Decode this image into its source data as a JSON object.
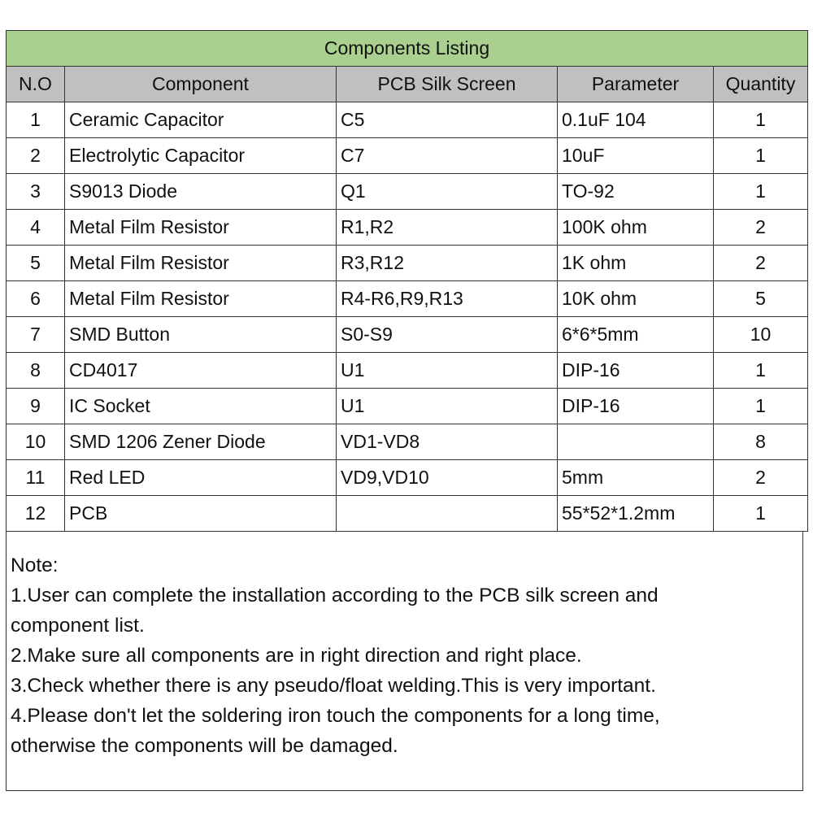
{
  "title": "Components Listing",
  "headers": [
    "N.O",
    "Component",
    "PCB Silk Screen",
    "Parameter",
    "Quantity"
  ],
  "rows": [
    [
      "1",
      "Ceramic Capacitor",
      "C5",
      "0.1uF 104",
      "1"
    ],
    [
      "2",
      "Electrolytic Capacitor",
      "C7",
      "10uF",
      "1"
    ],
    [
      "3",
      "S9013 Diode",
      "Q1",
      "TO-92",
      "1"
    ],
    [
      "4",
      "Metal Film Resistor",
      "R1,R2",
      "100K ohm",
      "2"
    ],
    [
      "5",
      "Metal Film Resistor",
      "R3,R12",
      "1K ohm",
      "2"
    ],
    [
      "6",
      "Metal Film Resistor",
      "R4-R6,R9,R13",
      "10K ohm",
      "5"
    ],
    [
      "7",
      "SMD Button",
      "S0-S9",
      "6*6*5mm",
      "10"
    ],
    [
      "8",
      "CD4017",
      "U1",
      "DIP-16",
      "1"
    ],
    [
      "9",
      "IC Socket",
      "U1",
      "DIP-16",
      "1"
    ],
    [
      "10",
      "SMD 1206 Zener Diode",
      "VD1-VD8",
      "",
      "8"
    ],
    [
      "11",
      "Red LED",
      "VD9,VD10",
      "5mm",
      "2"
    ],
    [
      "12",
      "PCB",
      "",
      "55*52*1.2mm",
      "1"
    ]
  ],
  "note": {
    "heading": "Note:",
    "lines": [
      "1.User can complete the installation according to the PCB silk screen and",
      "component list.",
      "2.Make sure all components are in right direction and right place.",
      "3.Check whether there is any pseudo/float welding.This is very important.",
      "4.Please don't let the soldering iron touch the components for a long time,",
      "otherwise the components will be damaged."
    ]
  },
  "colors": {
    "title_bg": "#a9d08e",
    "header_bg": "#c0c0c0"
  }
}
